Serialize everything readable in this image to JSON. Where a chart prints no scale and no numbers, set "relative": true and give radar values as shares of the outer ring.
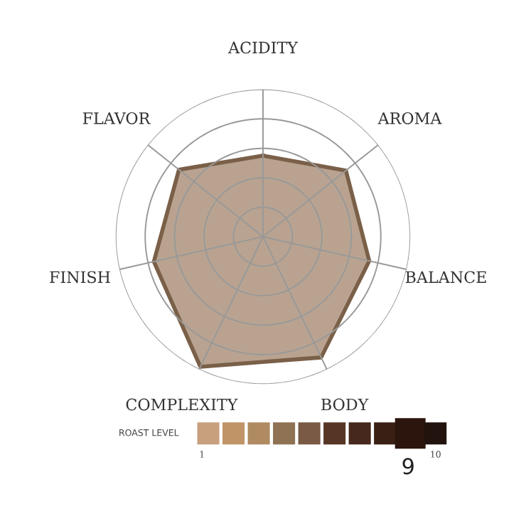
{
  "chart_data": {
    "type": "radar",
    "relative": true,
    "categories": [
      "ACIDITY",
      "AROMA",
      "BALANCE",
      "BODY",
      "COMPLEXITY",
      "FINISH",
      "FLAVOR"
    ],
    "series": [
      {
        "color": "#7a6048",
        "values": [
          0.55,
          0.72,
          0.74,
          0.91,
          0.98,
          0.76,
          0.73
        ]
      }
    ],
    "grid": true,
    "annotations": [
      "ROAST LEVEL",
      "1",
      "10",
      "9"
    ]
  }
}
